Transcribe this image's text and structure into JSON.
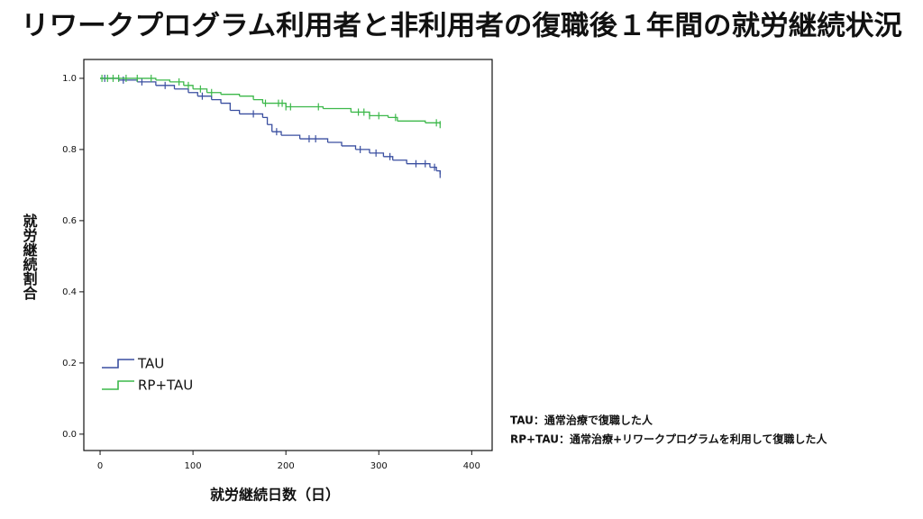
{
  "chart_data": {
    "type": "step",
    "title": "リワークプログラム利用者と非利用者の復職後１年間の就労継続状況",
    "x_label": "就労継続日数（日）",
    "y_label": "就労継続割合",
    "xlim": [
      -17.5,
      422
    ],
    "ylim": [
      -0.046,
      1.053
    ],
    "xticks": [
      0,
      100,
      200,
      300,
      400
    ],
    "yticks": [
      {
        "value": 0,
        "label": "0.0"
      },
      0.2,
      0.4,
      0.6,
      0.8,
      {
        "value": 1,
        "label": "1.0"
      }
    ],
    "series": [
      {
        "name": "TAU",
        "color": "#3a4fa0",
        "x": [
          0,
          20,
          40,
          60,
          80,
          95,
          105,
          120,
          130,
          140,
          150,
          175,
          180,
          185,
          195,
          215,
          245,
          260,
          275,
          290,
          305,
          315,
          330,
          355,
          362,
          366
        ],
        "values": [
          1.0,
          0.995,
          0.99,
          0.98,
          0.97,
          0.96,
          0.95,
          0.94,
          0.93,
          0.91,
          0.9,
          0.89,
          0.87,
          0.85,
          0.84,
          0.83,
          0.82,
          0.81,
          0.8,
          0.79,
          0.78,
          0.77,
          0.76,
          0.75,
          0.74,
          0.73
        ],
        "censored": [
          5,
          25,
          45,
          70,
          110,
          165,
          190,
          225,
          232,
          280,
          297,
          312,
          340,
          350,
          360,
          366
        ]
      },
      {
        "name": "RP+TAU",
        "color": "#3cb84a",
        "x": [
          0,
          60,
          75,
          90,
          100,
          115,
          130,
          150,
          165,
          175,
          200,
          240,
          270,
          290,
          310,
          320,
          350,
          366
        ],
        "values": [
          1.0,
          0.995,
          0.99,
          0.98,
          0.97,
          0.96,
          0.955,
          0.95,
          0.94,
          0.93,
          0.92,
          0.915,
          0.905,
          0.895,
          0.89,
          0.88,
          0.875,
          0.87
        ],
        "censored": [
          2,
          8,
          14,
          20,
          28,
          40,
          55,
          85,
          95,
          108,
          120,
          178,
          192,
          196,
          200,
          205,
          235,
          278,
          284,
          290,
          300,
          318,
          362,
          366
        ]
      }
    ],
    "legend": "lower left",
    "notes": [
      "TAU：通常治療で復職した人",
      "RP+TAU：通常治療+リワークプログラムを利用して復職した人"
    ]
  }
}
